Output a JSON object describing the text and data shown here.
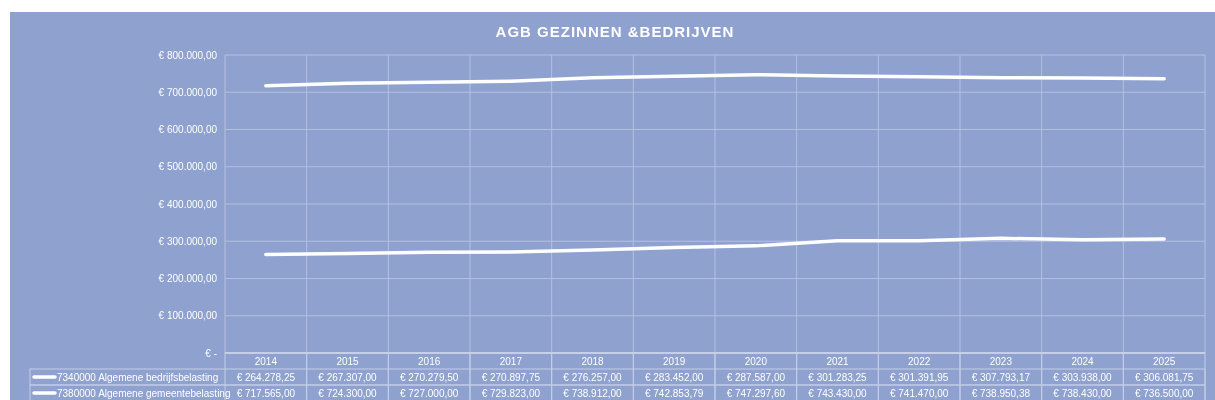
{
  "chart_data": {
    "type": "line",
    "title": "AGB GEZINNEN &BEDRIJVEN",
    "categories": [
      "2014",
      "2015",
      "2016",
      "2017",
      "2018",
      "2019",
      "2020",
      "2021",
      "2022",
      "2023",
      "2024",
      "2025"
    ],
    "series": [
      {
        "name": "7340000 Algemene bedrijfsbelasting",
        "color": "#ffffff",
        "values": [
          264278.25,
          267307,
          270279.5,
          270897.75,
          276257,
          283452,
          287587,
          301283.25,
          301391.95,
          307793.17,
          303938,
          306081.75
        ],
        "value_labels": [
          "€ 264.278,25",
          "€ 267.307,00",
          "€ 270.279,50",
          "€ 270.897,75",
          "€ 276.257,00",
          "€ 283.452,00",
          "€ 287.587,00",
          "€ 301.283,25",
          "€ 301.391,95",
          "€ 307.793,17",
          "€ 303.938,00",
          "€ 306.081,75"
        ]
      },
      {
        "name": "7380000 Algemene gemeentebelasting",
        "color": "#ffffff",
        "values": [
          717565,
          724300,
          727000,
          729823,
          738912,
          742853.79,
          747297.6,
          743430,
          741470,
          738950.38,
          738430,
          736500
        ],
        "value_labels": [
          "€ 717.565,00",
          "€ 724.300,00",
          "€ 727.000,00",
          "€ 729.823,00",
          "€ 738.912,00",
          "€ 742.853,79",
          "€ 747.297,60",
          "€ 743.430,00",
          "€ 741.470,00",
          "€ 738.950,38",
          "€ 738.430,00",
          "€ 736.500,00"
        ]
      }
    ],
    "ylim": [
      0,
      800000
    ],
    "yticks": [
      {
        "value": 0,
        "label": "€ -"
      },
      {
        "value": 100000,
        "label": "€ 100.000,00"
      },
      {
        "value": 200000,
        "label": "€ 200.000,00"
      },
      {
        "value": 300000,
        "label": "€ 300.000,00"
      },
      {
        "value": 400000,
        "label": "€ 400.000,00"
      },
      {
        "value": 500000,
        "label": "€ 500.000,00"
      },
      {
        "value": 600000,
        "label": "€ 600.000,00"
      },
      {
        "value": 700000,
        "label": "€ 700.000,00"
      },
      {
        "value": 800000,
        "label": "€ 800.000,00"
      }
    ],
    "grid": true,
    "legend": "bottom",
    "marker": "none",
    "line_style": "solid"
  }
}
